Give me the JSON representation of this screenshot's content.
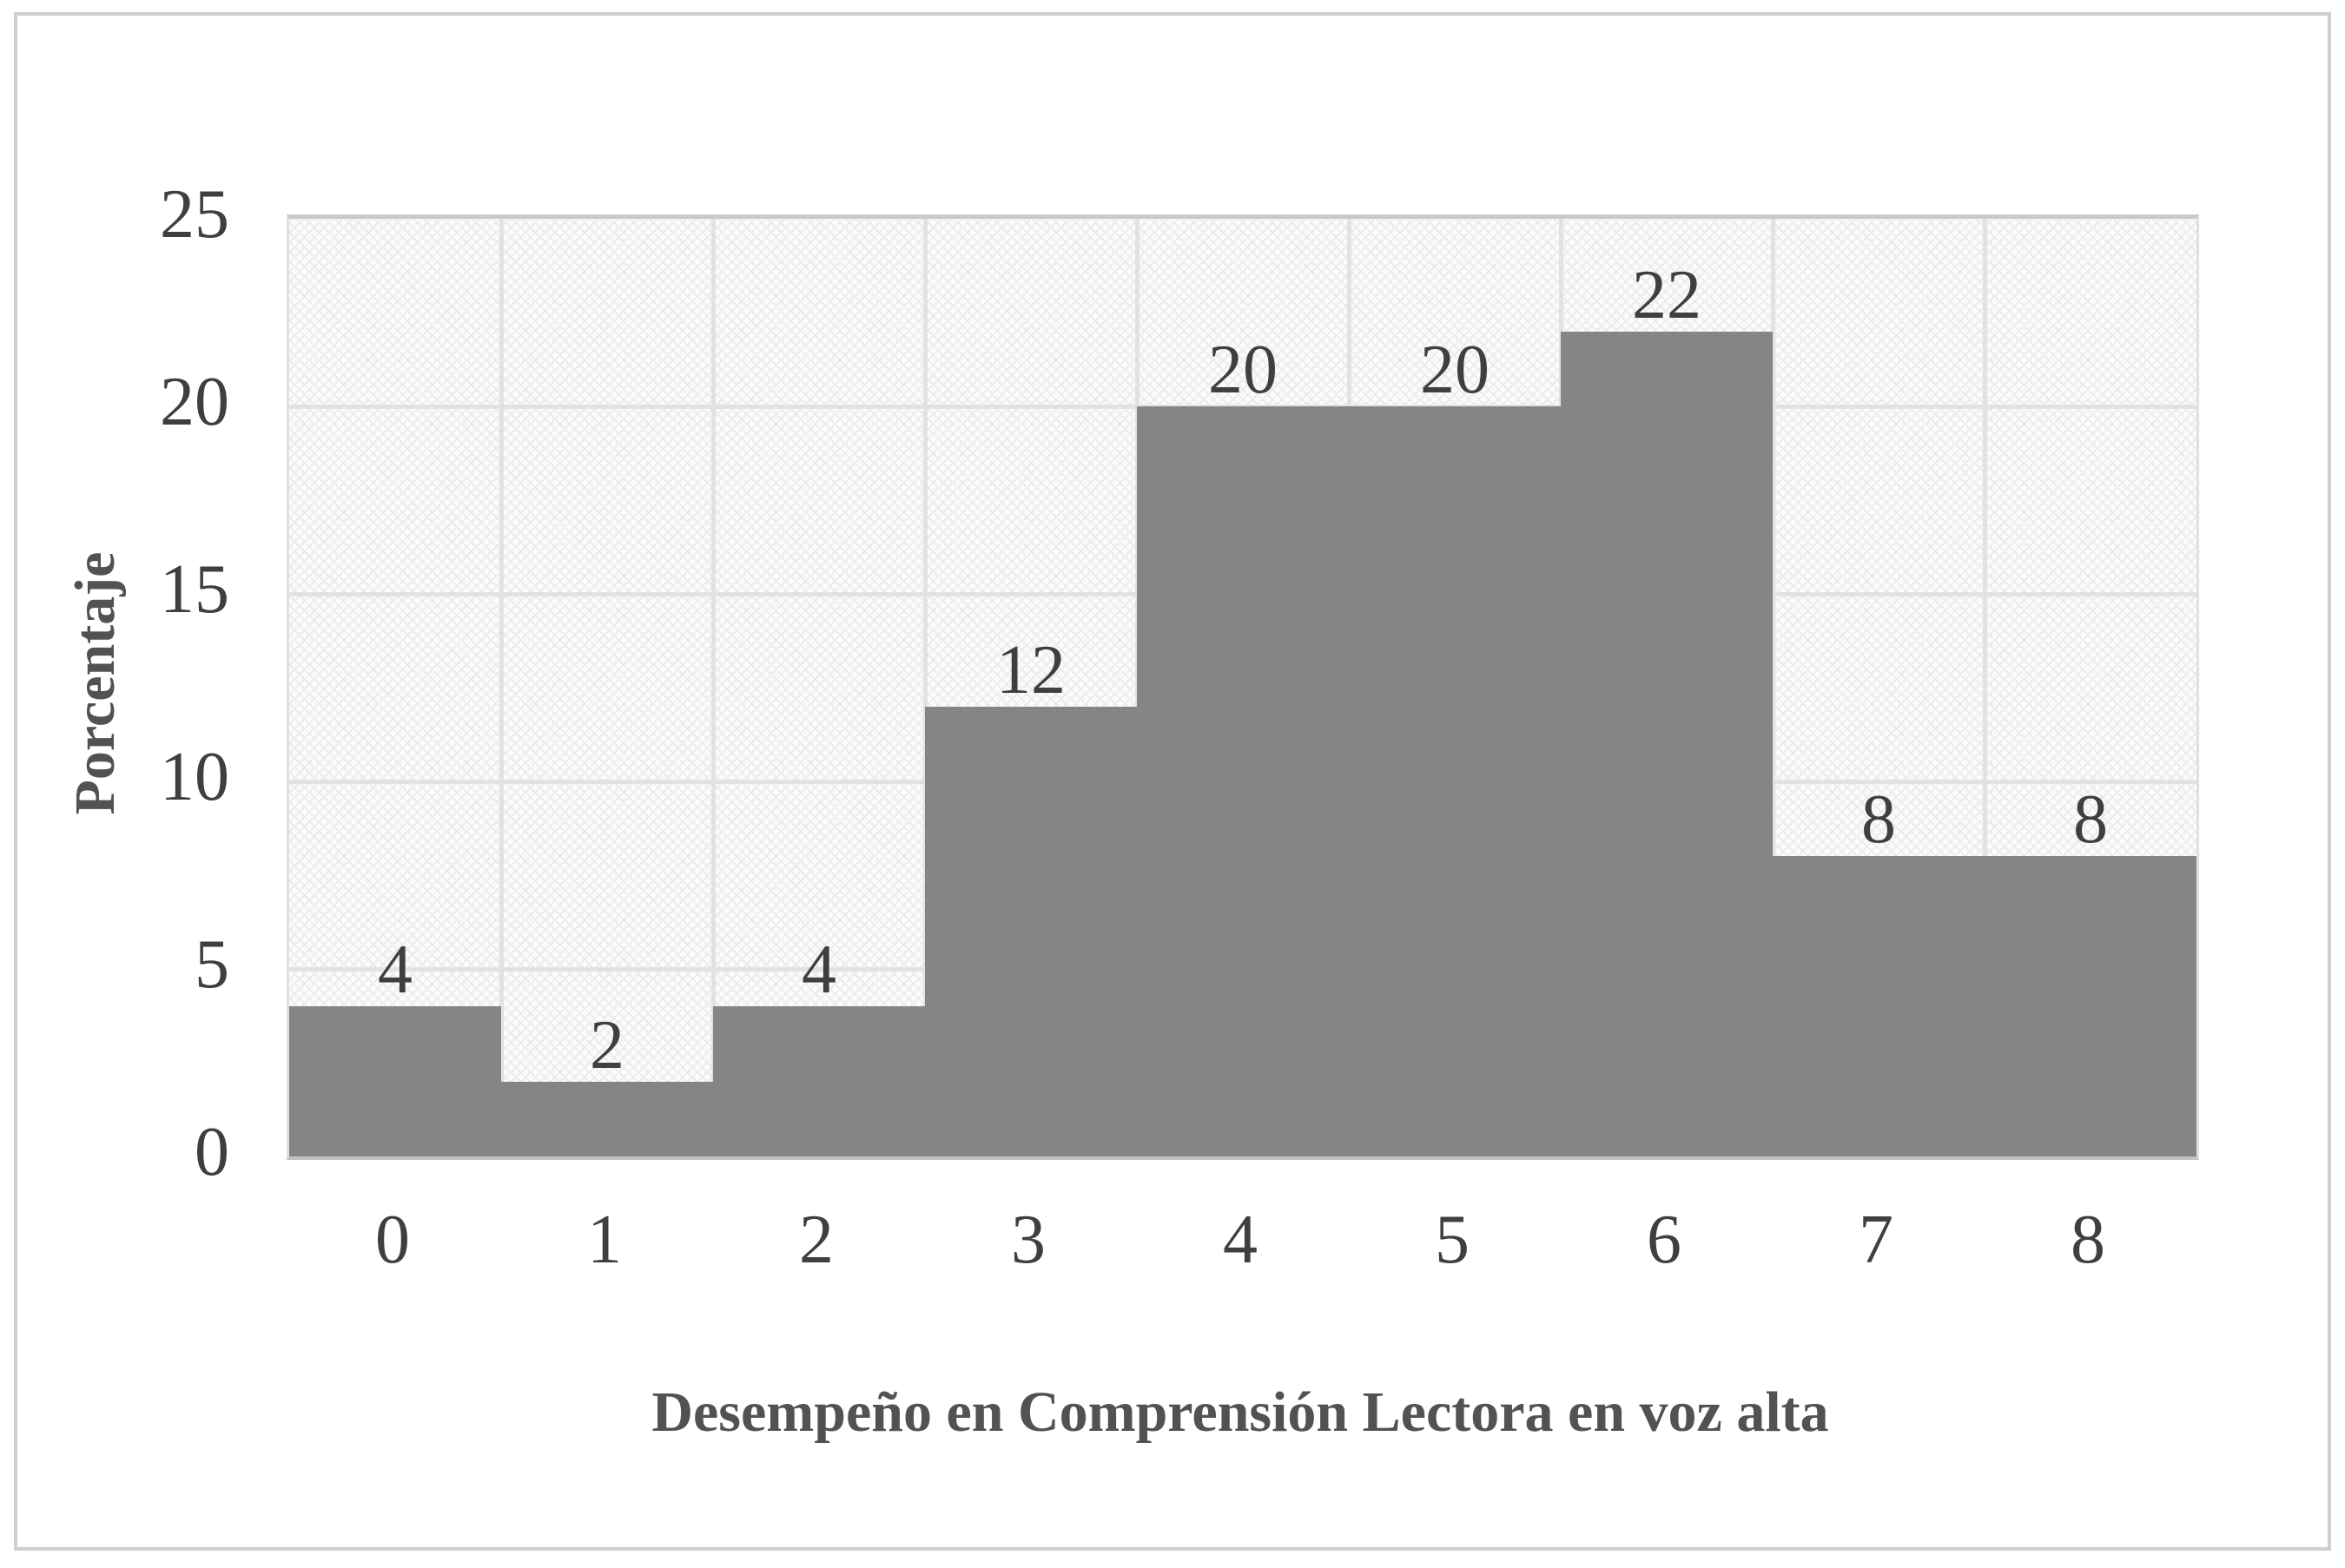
{
  "figure": {
    "kind": "histogram-figure",
    "background": "#ffffff",
    "border_color": "#cfcfcf"
  },
  "chart_data": {
    "type": "bar",
    "title": "",
    "categories": [
      "0",
      "1",
      "2",
      "3",
      "4",
      "5",
      "6",
      "7",
      "8"
    ],
    "values": [
      4,
      2,
      4,
      12,
      20,
      20,
      22,
      8,
      8
    ],
    "data_labels": [
      "4",
      "2",
      "4",
      "12",
      "20",
      "20",
      "22",
      "8",
      "8"
    ],
    "xlabel": "Desempeño en Comprensión Lectora en voz alta",
    "ylabel": "Porcentaje",
    "ylim": [
      0,
      25
    ],
    "yticks": [
      "0",
      "5",
      "10",
      "15",
      "20",
      "25"
    ],
    "grid": "major horizontal and vertical, light gray",
    "legend": false,
    "gap_width": 0,
    "bar_color": "#858585",
    "plot_fill": "light diagonal crosshatch pattern",
    "gridline_color": "#e2e2e2",
    "label_color": "#3f3f3f"
  }
}
